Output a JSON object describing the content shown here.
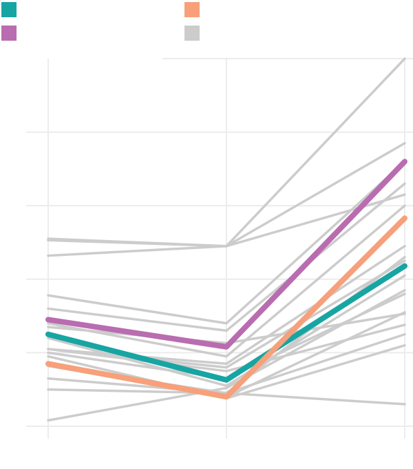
{
  "chart_data": {
    "type": "line",
    "title": "",
    "xlabel": "",
    "ylabel": "",
    "categories": [
      "",
      "",
      ""
    ],
    "ylim": [
      0,
      5
    ],
    "grid": true,
    "legend_position": "top",
    "legend": [
      {
        "key": "teal",
        "label": "",
        "color": "#17a5a3"
      },
      {
        "key": "salmon",
        "label": "",
        "color": "#f7a07a"
      },
      {
        "key": "purple",
        "label": "",
        "color": "#b96cb0"
      },
      {
        "key": "gray",
        "label": "",
        "color": "#cccccc"
      }
    ],
    "background_series": [
      {
        "values": [
          2.53,
          2.45,
          5.0
        ]
      },
      {
        "values": [
          2.32,
          2.45,
          3.15
        ]
      },
      {
        "values": [
          1.78,
          1.4,
          3.6
        ]
      },
      {
        "values": [
          1.6,
          1.3,
          3.3
        ]
      },
      {
        "values": [
          1.4,
          0.95,
          3.0
        ]
      },
      {
        "values": [
          1.35,
          1.13,
          1.53
        ]
      },
      {
        "values": [
          1.05,
          0.85,
          2.45
        ]
      },
      {
        "values": [
          0.95,
          0.38,
          1.1
        ]
      },
      {
        "values": [
          0.82,
          0.45,
          2.3
        ]
      },
      {
        "values": [
          0.65,
          0.45,
          1.25
        ]
      },
      {
        "values": [
          0.5,
          0.45,
          0.3
        ]
      },
      {
        "values": [
          0.08,
          0.52,
          1.85
        ]
      },
      {
        "values": [
          1.05,
          0.75,
          1.38
        ]
      },
      {
        "values": [
          1.0,
          0.65,
          1.8
        ]
      },
      {
        "values": [
          1.2,
          0.55,
          2.05
        ]
      },
      {
        "values": [
          2.55,
          2.45,
          3.85
        ]
      },
      {
        "values": [
          1.05,
          0.8,
          2.25
        ]
      },
      {
        "values": [
          0.82,
          0.4,
          1.55
        ]
      }
    ],
    "series": [
      {
        "name": "",
        "key": "teal",
        "color": "#17a5a3",
        "values": [
          1.25,
          0.63,
          2.18
        ]
      },
      {
        "name": "",
        "key": "salmon",
        "color": "#f7a07a",
        "values": [
          0.85,
          0.4,
          2.83
        ]
      },
      {
        "name": "",
        "key": "purple",
        "color": "#b96cb0",
        "values": [
          1.45,
          1.08,
          3.6
        ]
      }
    ]
  }
}
